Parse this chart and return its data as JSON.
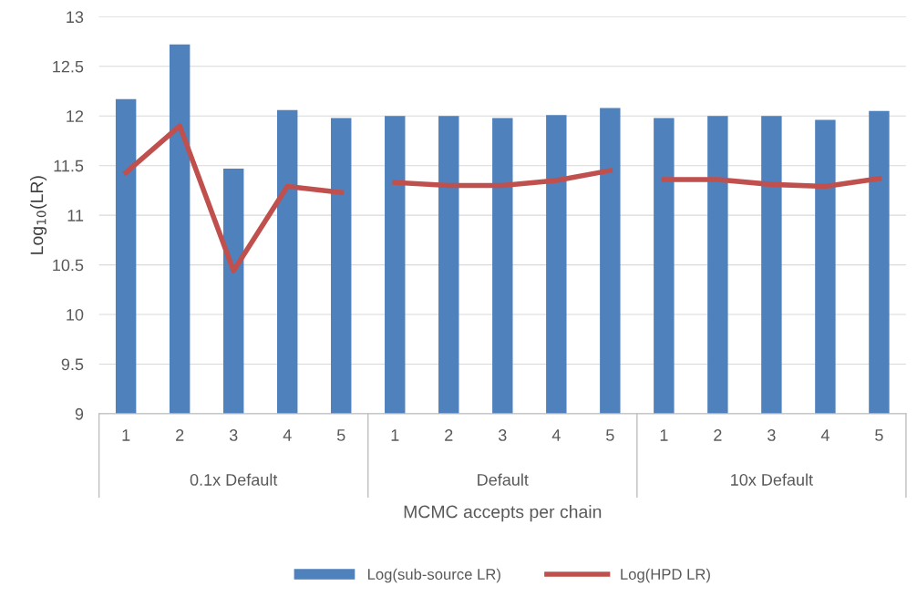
{
  "chart_data": {
    "type": "bar",
    "xlabel": "MCMC accepts per chain",
    "ylabel": "Log$_{10}$(LR)",
    "categories": [
      "1",
      "2",
      "3",
      "4",
      "5",
      "1",
      "2",
      "3",
      "4",
      "5",
      "1",
      "2",
      "3",
      "4",
      "5"
    ],
    "annotations": [
      "0.1x Default",
      "Default",
      "10x Default"
    ],
    "series": [
      {
        "name": "Log(sub-source LR)",
        "color": "#4f81bd",
        "values": [
          12.17,
          12.72,
          11.47,
          12.06,
          11.98,
          12.0,
          12.0,
          11.98,
          12.01,
          12.08,
          11.98,
          12.0,
          12.0,
          11.96,
          12.05
        ]
      },
      {
        "name": "Log(HPD LR)",
        "type": "line",
        "color": "#c0504d",
        "values": [
          11.43,
          11.9,
          10.44,
          11.29,
          11.23,
          null,
          null,
          null,
          null,
          null,
          null,
          null,
          null,
          null,
          null
        ]
      },
      {
        "type": "line",
        "color": "#c0504d",
        "values": [
          null,
          null,
          null,
          null,
          null,
          11.33,
          11.3,
          11.3,
          11.35,
          11.45,
          null,
          null,
          null,
          null,
          null
        ]
      },
      {
        "type": "line",
        "color": "#c0504d",
        "values": [
          null,
          null,
          null,
          null,
          null,
          null,
          null,
          null,
          null,
          null,
          11.36,
          11.36,
          11.31,
          11.29,
          11.37
        ]
      }
    ],
    "ylim": [
      9,
      13
    ],
    "yticks": [
      9,
      9.5,
      10,
      10.5,
      11,
      11.5,
      12,
      12.5,
      13
    ],
    "grid": "y",
    "legend": "bottom"
  }
}
